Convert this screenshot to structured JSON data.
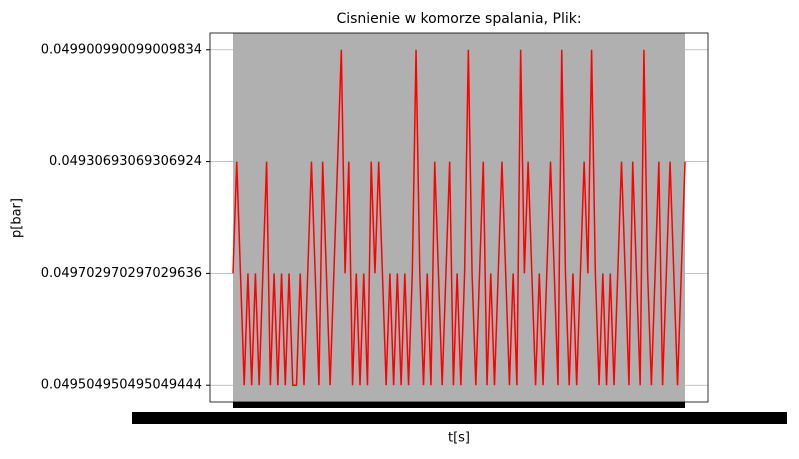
{
  "chart_data": {
    "type": "line",
    "title": "Cisnienie w komorze spalania, Plik:",
    "x_label": "t[s]",
    "y_label": "p[bar]",
    "color": "#ff0000",
    "grid": true,
    "ylim": [
      -0.15,
      3.15
    ],
    "yticks": [
      {
        "value": 0,
        "label": "0.049504950495049444"
      },
      {
        "value": 1,
        "label": "0.049702970297029636"
      },
      {
        "value": 2,
        "label": "0.04930693069306924"
      },
      {
        "value": 3,
        "label": "0.049900990099009834"
      }
    ],
    "values": [
      1,
      2,
      1,
      0,
      1,
      0,
      1,
      0,
      1,
      2,
      0,
      1,
      0,
      1,
      0,
      1,
      0,
      0,
      1,
      0,
      1,
      2,
      1,
      0,
      2,
      1,
      0,
      1,
      2,
      3,
      1,
      2,
      0,
      1,
      0,
      1,
      0,
      2,
      1,
      2,
      1,
      0,
      1,
      0,
      1,
      0,
      1,
      0,
      1,
      3,
      1,
      0,
      1,
      0,
      2,
      1,
      0,
      1,
      2,
      0,
      1,
      0,
      1,
      3,
      1,
      0,
      1,
      2,
      0,
      1,
      0,
      1,
      2,
      1,
      0,
      1,
      0,
      3,
      1,
      2,
      1,
      0,
      1,
      0,
      1,
      2,
      1,
      0,
      3,
      1,
      0,
      1,
      0,
      1,
      2,
      1,
      3,
      1,
      0,
      1,
      0,
      1,
      0,
      1,
      2,
      1,
      0,
      2,
      1,
      0,
      3,
      1,
      0,
      1,
      2,
      0,
      1,
      2,
      1,
      0,
      1,
      2
    ]
  }
}
